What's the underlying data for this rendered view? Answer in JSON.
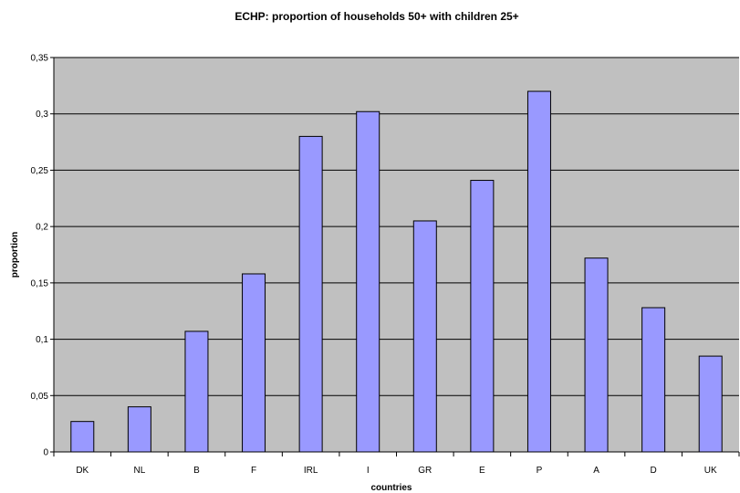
{
  "chart_data": {
    "type": "bar",
    "title": "ECHP: proportion of households 50+ with children 25+",
    "xlabel": "countries",
    "ylabel": "proportion",
    "categories": [
      "DK",
      "NL",
      "B",
      "F",
      "IRL",
      "I",
      "GR",
      "E",
      "P",
      "A",
      "D",
      "UK"
    ],
    "values": [
      0.027,
      0.04,
      0.107,
      0.158,
      0.28,
      0.302,
      0.205,
      0.241,
      0.32,
      0.172,
      0.128,
      0.085
    ],
    "ylim": [
      0,
      0.35
    ],
    "yticks": [
      "0",
      "0,05",
      "0,1",
      "0,15",
      "0,2",
      "0,25",
      "0,3",
      "0,35"
    ],
    "grid": true,
    "legend": "none",
    "colors": {
      "bar_fill": "#9999ff",
      "plot_background": "#c0c0c0",
      "bar_stroke": "#000000"
    }
  }
}
